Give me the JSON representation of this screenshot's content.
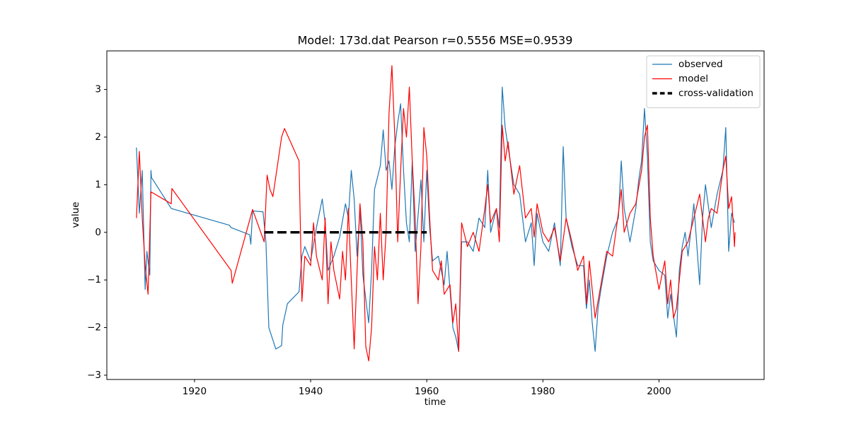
{
  "chart_data": {
    "type": "line",
    "title": "Model: 173d.dat  Pearson r=0.5556  MSE=0.9539",
    "x_label": "time",
    "y_label": "value",
    "xlim": [
      1904.9,
      2018.1
    ],
    "ylim": [
      -3.09,
      3.81
    ],
    "xticks": [
      1920,
      1940,
      1960,
      1980,
      2000
    ],
    "yticks": [
      {
        "value": -3,
        "label": "−3"
      },
      {
        "value": -2,
        "label": "−2"
      },
      {
        "value": -1,
        "label": "−1"
      },
      0,
      1,
      2,
      3
    ],
    "legend": "upper right",
    "series": [
      {
        "name": "observed",
        "color": "#1f77b4",
        "linewidth": 1.2,
        "linestyle": "solid",
        "x": [
          1910.0,
          1910.5,
          1911.0,
          1911.5,
          1911.8,
          1912.3,
          1912.5,
          1912.6,
          1916.0,
          1926.0,
          1926.3,
          1929.5,
          1929.7,
          1930.0,
          1931.8,
          1932.3,
          1932.8,
          1934.0,
          1935.0,
          1935.2,
          1936.0,
          1938.0,
          1938.5,
          1939.0,
          1940.0,
          1941.0,
          1942.0,
          1942.5,
          1943.0,
          1944.0,
          1945.0,
          1946.0,
          1946.5,
          1947.0,
          1947.5,
          1948.0,
          1948.5,
          1949.0,
          1950.0,
          1950.5,
          1951.0,
          1952.0,
          1952.5,
          1953.0,
          1953.5,
          1954.0,
          1954.5,
          1955.0,
          1955.5,
          1956.0,
          1956.5,
          1957.0,
          1957.5,
          1958.0,
          1959.0,
          1959.5,
          1960.0,
          1960.5,
          1961.0,
          1962.0,
          1963.0,
          1963.5,
          1964.0,
          1964.5,
          1965.0,
          1965.5,
          1966.0,
          1967.0,
          1968.0,
          1969.0,
          1970.0,
          1970.5,
          1971.0,
          1972.0,
          1972.5,
          1973.0,
          1973.5,
          1974.0,
          1975.0,
          1976.0,
          1976.5,
          1977.0,
          1978.0,
          1978.5,
          1979.0,
          1980.0,
          1981.0,
          1982.0,
          1983.0,
          1983.5,
          1984.0,
          1985.0,
          1986.0,
          1987.0,
          1987.5,
          1988.0,
          1988.5,
          1989.0,
          1989.5,
          1990.0,
          1991.0,
          1992.0,
          1993.0,
          1993.5,
          1994.0,
          1995.0,
          1996.0,
          1996.5,
          1997.0,
          1997.5,
          1998.0,
          1998.5,
          1999.0,
          2000.0,
          2001.0,
          2001.5,
          2002.0,
          2003.0,
          2003.5,
          2004.0,
          2004.5,
          2005.0,
          2006.0,
          2007.0,
          2007.5,
          2008.0,
          2009.0,
          2010.0,
          2011.0,
          2011.5,
          2012.0,
          2012.5,
          2013.0
        ],
        "values": [
          1.78,
          0.4,
          1.3,
          -1.2,
          -0.4,
          -0.9,
          1.3,
          1.15,
          0.5,
          0.15,
          0.1,
          -0.05,
          -0.25,
          0.45,
          0.43,
          -0.2,
          -2.0,
          -2.45,
          -2.38,
          -1.95,
          -1.5,
          -1.25,
          -0.5,
          -0.3,
          -0.6,
          0.1,
          0.7,
          0.2,
          -0.8,
          -0.5,
          -0.1,
          0.6,
          0.3,
          1.3,
          0.7,
          -0.5,
          0.5,
          -0.9,
          -1.9,
          -0.8,
          0.9,
          1.4,
          2.15,
          1.3,
          1.5,
          0.9,
          1.8,
          2.3,
          2.7,
          1.3,
          0.2,
          -0.2,
          1.5,
          -0.4,
          1.1,
          -0.2,
          1.3,
          0.1,
          -0.6,
          -0.5,
          -1.1,
          -0.4,
          -1.2,
          -2.0,
          -2.2,
          -2.5,
          -0.2,
          -0.2,
          -0.4,
          0.3,
          0.1,
          1.3,
          0.0,
          0.5,
          0.1,
          3.05,
          2.2,
          1.8,
          1.0,
          0.8,
          0.3,
          -0.2,
          0.2,
          -0.7,
          0.4,
          -0.2,
          -0.4,
          0.2,
          -0.7,
          1.8,
          0.3,
          -0.3,
          -0.7,
          -0.7,
          -1.6,
          -1.0,
          -1.9,
          -2.5,
          -1.6,
          -1.2,
          -0.5,
          0.0,
          0.3,
          1.5,
          0.5,
          -0.2,
          0.5,
          1.1,
          1.5,
          2.6,
          1.6,
          -0.2,
          -0.6,
          -0.8,
          -0.9,
          -1.8,
          -1.3,
          -2.2,
          -0.8,
          -0.3,
          0.0,
          -0.5,
          0.6,
          -1.1,
          0.3,
          1.0,
          0.1,
          0.8,
          1.3,
          2.2,
          -0.4,
          0.4,
          0.2
        ]
      },
      {
        "name": "model",
        "color": "#ff0000",
        "linewidth": 1.2,
        "linestyle": "solid",
        "x": [
          1910.0,
          1910.5,
          1911.0,
          1911.5,
          1912.0,
          1912.5,
          1916.0,
          1916.1,
          1926.3,
          1926.5,
          1930.0,
          1932.0,
          1932.5,
          1933.0,
          1933.5,
          1935.0,
          1935.5,
          1938.0,
          1938.5,
          1939.0,
          1940.0,
          1940.5,
          1941.0,
          1942.0,
          1942.5,
          1943.0,
          1943.5,
          1944.0,
          1945.0,
          1945.5,
          1946.0,
          1946.5,
          1947.0,
          1947.5,
          1948.0,
          1948.5,
          1949.0,
          1949.5,
          1950.0,
          1950.5,
          1951.0,
          1951.5,
          1952.0,
          1952.5,
          1953.0,
          1953.5,
          1954.0,
          1954.5,
          1955.0,
          1955.5,
          1956.0,
          1956.5,
          1957.0,
          1957.5,
          1958.0,
          1958.5,
          1959.0,
          1959.5,
          1960.0,
          1960.5,
          1961.0,
          1962.0,
          1962.5,
          1963.0,
          1964.0,
          1964.5,
          1965.0,
          1965.5,
          1966.0,
          1967.0,
          1968.0,
          1969.0,
          1970.0,
          1970.5,
          1971.0,
          1972.0,
          1972.5,
          1973.0,
          1973.5,
          1974.0,
          1975.0,
          1976.0,
          1977.0,
          1978.0,
          1978.5,
          1979.0,
          1980.0,
          1981.0,
          1982.0,
          1983.0,
          1984.0,
          1985.0,
          1986.0,
          1987.0,
          1987.5,
          1988.0,
          1988.5,
          1989.0,
          1990.0,
          1991.0,
          1992.0,
          1993.0,
          1993.5,
          1994.0,
          1995.0,
          1996.0,
          1997.0,
          1997.5,
          1998.0,
          1998.5,
          1999.0,
          2000.0,
          2001.0,
          2001.5,
          2002.0,
          2002.5,
          2003.0,
          2004.0,
          2005.0,
          2006.0,
          2007.0,
          2008.0,
          2008.5,
          2009.0,
          2010.0,
          2011.0,
          2011.5,
          2012.0,
          2012.5,
          2013.0,
          2013.1
        ],
        "values": [
          0.3,
          1.7,
          0.3,
          -0.7,
          -1.3,
          0.85,
          0.6,
          0.92,
          -0.8,
          -1.07,
          0.48,
          -0.2,
          1.2,
          0.9,
          0.75,
          2.0,
          2.18,
          1.5,
          -1.45,
          -0.5,
          -0.7,
          0.2,
          -0.5,
          -1.0,
          0.3,
          -1.5,
          -0.2,
          -0.8,
          -1.4,
          -0.4,
          -1.0,
          0.5,
          -1.0,
          -2.45,
          -0.8,
          0.6,
          -0.2,
          -2.4,
          -2.7,
          -2.0,
          -0.3,
          -1.0,
          0.4,
          -1.0,
          0.0,
          2.5,
          3.5,
          2.0,
          -0.2,
          1.3,
          2.6,
          2.0,
          3.05,
          1.5,
          0.3,
          -1.5,
          -0.3,
          2.2,
          1.6,
          0.3,
          -0.8,
          -1.0,
          -0.6,
          -1.3,
          -1.1,
          -1.9,
          -1.5,
          -2.5,
          0.2,
          -0.3,
          0.0,
          -0.4,
          0.5,
          1.0,
          0.2,
          0.5,
          -0.2,
          2.25,
          1.5,
          1.9,
          0.8,
          1.4,
          0.3,
          0.5,
          -0.1,
          0.6,
          0.0,
          -0.2,
          0.1,
          -0.6,
          0.3,
          -0.2,
          -0.8,
          -0.5,
          -1.5,
          -0.6,
          -1.2,
          -1.8,
          -1.1,
          -0.4,
          -0.5,
          0.4,
          0.9,
          0.0,
          0.4,
          0.6,
          1.3,
          2.0,
          2.25,
          0.3,
          -0.5,
          -1.2,
          -0.6,
          -1.5,
          -1.0,
          -1.8,
          -1.6,
          -0.4,
          -0.2,
          0.3,
          0.8,
          -0.2,
          0.3,
          0.5,
          0.4,
          1.3,
          1.6,
          0.5,
          0.75,
          -0.3,
          0.0
        ]
      },
      {
        "name": "cross-validation",
        "color": "#000000",
        "linewidth": 3.5,
        "linestyle": "dashed",
        "x": [
          1932,
          1960
        ],
        "values": [
          0,
          0
        ]
      }
    ]
  }
}
